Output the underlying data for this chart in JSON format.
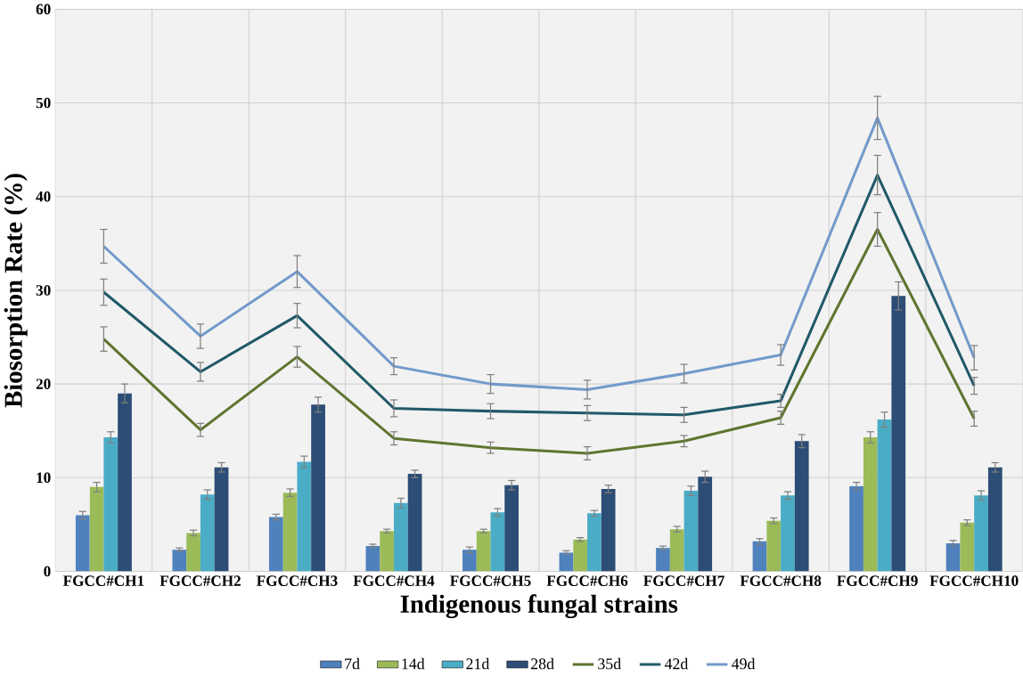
{
  "chart_data": {
    "type": "bar",
    "xlabel": "Indigenous fungal strains",
    "ylabel": "Biosorption Rate (%)",
    "categories": [
      "FGCC#CH1",
      "FGCC#CH2",
      "FGCC#CH3",
      "FGCC#CH4",
      "FGCC#CH5",
      "FGCC#CH6",
      "FGCC#CH7",
      "FGCC#CH8",
      "FGCC#CH9",
      "FGCC#CH10"
    ],
    "series": [
      {
        "name": "7d",
        "type": "bar",
        "color": "#4f81bd",
        "values": [
          6.0,
          2.3,
          5.8,
          2.7,
          2.3,
          2.0,
          2.5,
          3.2,
          9.1,
          3.0
        ],
        "errors": [
          0.4,
          0.2,
          0.3,
          0.2,
          0.3,
          0.2,
          0.2,
          0.3,
          0.4,
          0.3
        ]
      },
      {
        "name": "14d",
        "type": "bar",
        "color": "#9bbb59",
        "values": [
          9.0,
          4.1,
          8.4,
          4.3,
          4.3,
          3.4,
          4.5,
          5.4,
          14.3,
          5.2
        ],
        "errors": [
          0.5,
          0.3,
          0.4,
          0.2,
          0.2,
          0.2,
          0.3,
          0.3,
          0.6,
          0.3
        ]
      },
      {
        "name": "21d",
        "type": "bar",
        "color": "#4bacc6",
        "values": [
          14.3,
          8.2,
          11.7,
          7.3,
          6.3,
          6.2,
          8.6,
          8.1,
          16.2,
          8.1
        ],
        "errors": [
          0.6,
          0.5,
          0.6,
          0.5,
          0.4,
          0.3,
          0.5,
          0.4,
          0.8,
          0.5
        ]
      },
      {
        "name": "28d",
        "type": "bar",
        "color": "#2c4d75",
        "values": [
          19.0,
          11.1,
          17.8,
          10.4,
          9.2,
          8.8,
          10.1,
          13.9,
          29.4,
          11.1
        ],
        "errors": [
          1.0,
          0.5,
          0.8,
          0.4,
          0.5,
          0.4,
          0.6,
          0.7,
          1.5,
          0.5
        ]
      },
      {
        "name": "35d",
        "type": "line",
        "color": "#5f7530",
        "values": [
          24.8,
          15.1,
          22.9,
          14.2,
          13.2,
          12.6,
          13.9,
          16.4,
          36.5,
          16.3
        ],
        "errors": [
          1.3,
          0.7,
          1.1,
          0.7,
          0.6,
          0.7,
          0.6,
          0.7,
          1.8,
          0.8
        ]
      },
      {
        "name": "42d",
        "type": "line",
        "color": "#215968",
        "values": [
          29.8,
          21.3,
          27.3,
          17.4,
          17.1,
          16.9,
          16.7,
          18.2,
          42.3,
          19.8
        ],
        "errors": [
          1.4,
          1.0,
          1.3,
          0.9,
          0.8,
          0.8,
          0.8,
          0.7,
          2.1,
          0.9
        ]
      },
      {
        "name": "49d",
        "type": "line",
        "color": "#729aca",
        "values": [
          34.7,
          25.1,
          32.0,
          21.9,
          20.0,
          19.4,
          21.1,
          23.1,
          48.4,
          22.8
        ],
        "errors": [
          1.8,
          1.3,
          1.7,
          0.9,
          1.0,
          1.0,
          1.0,
          1.1,
          2.3,
          1.3
        ]
      }
    ],
    "ylim": [
      0,
      60
    ],
    "yticks": [
      0,
      10,
      20,
      30,
      40,
      50,
      60
    ],
    "grid": true,
    "legend": "bottom"
  }
}
